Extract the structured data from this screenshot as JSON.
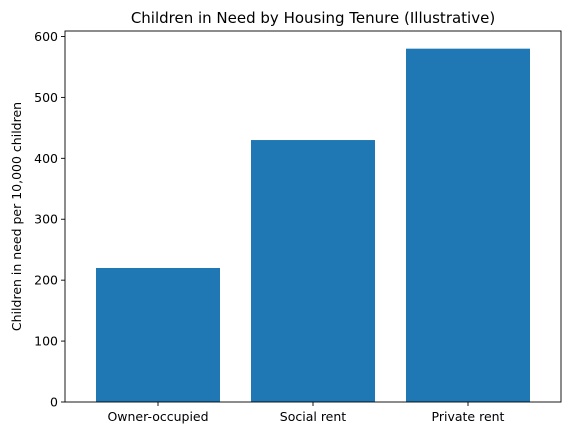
{
  "chart_data": {
    "type": "bar",
    "title": "Children in Need by Housing Tenure (Illustrative)",
    "xlabel": "",
    "ylabel": "Children in need per 10,000 children",
    "categories": [
      "Owner-occupied",
      "Social rent",
      "Private rent"
    ],
    "values": [
      220,
      430,
      580
    ],
    "ylim": [
      0,
      609
    ],
    "yticks": [
      0,
      100,
      200,
      300,
      400,
      500,
      600
    ],
    "grid": false,
    "bar_color": "#1f77b4"
  }
}
